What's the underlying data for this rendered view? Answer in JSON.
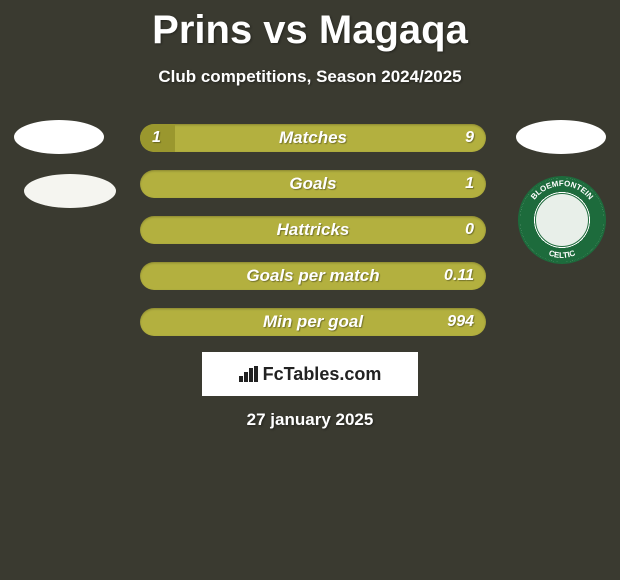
{
  "title": "Prins vs Magaqa",
  "subtitle": "Club competitions, Season 2024/2025",
  "date": "27 january 2025",
  "logo_text": "FcTables.com",
  "colors": {
    "background": "#3a3a30",
    "bar_bg": "#b3b03f",
    "bar_fill": "#9a972e",
    "text": "#ffffff",
    "logo_bg": "#ffffff",
    "logo_text": "#222222",
    "club_right_ring": "#1d6b3c"
  },
  "club_right_name": "BLOEMFONTEIN CELTIC",
  "bars": [
    {
      "label": "Matches",
      "left_val": "1",
      "right_val": "9",
      "left_pct": 10
    },
    {
      "label": "Goals",
      "left_val": "",
      "right_val": "1",
      "left_pct": 0
    },
    {
      "label": "Hattricks",
      "left_val": "",
      "right_val": "0",
      "left_pct": 0
    },
    {
      "label": "Goals per match",
      "left_val": "",
      "right_val": "0.11",
      "left_pct": 0
    },
    {
      "label": "Min per goal",
      "left_val": "",
      "right_val": "994",
      "left_pct": 0
    }
  ]
}
